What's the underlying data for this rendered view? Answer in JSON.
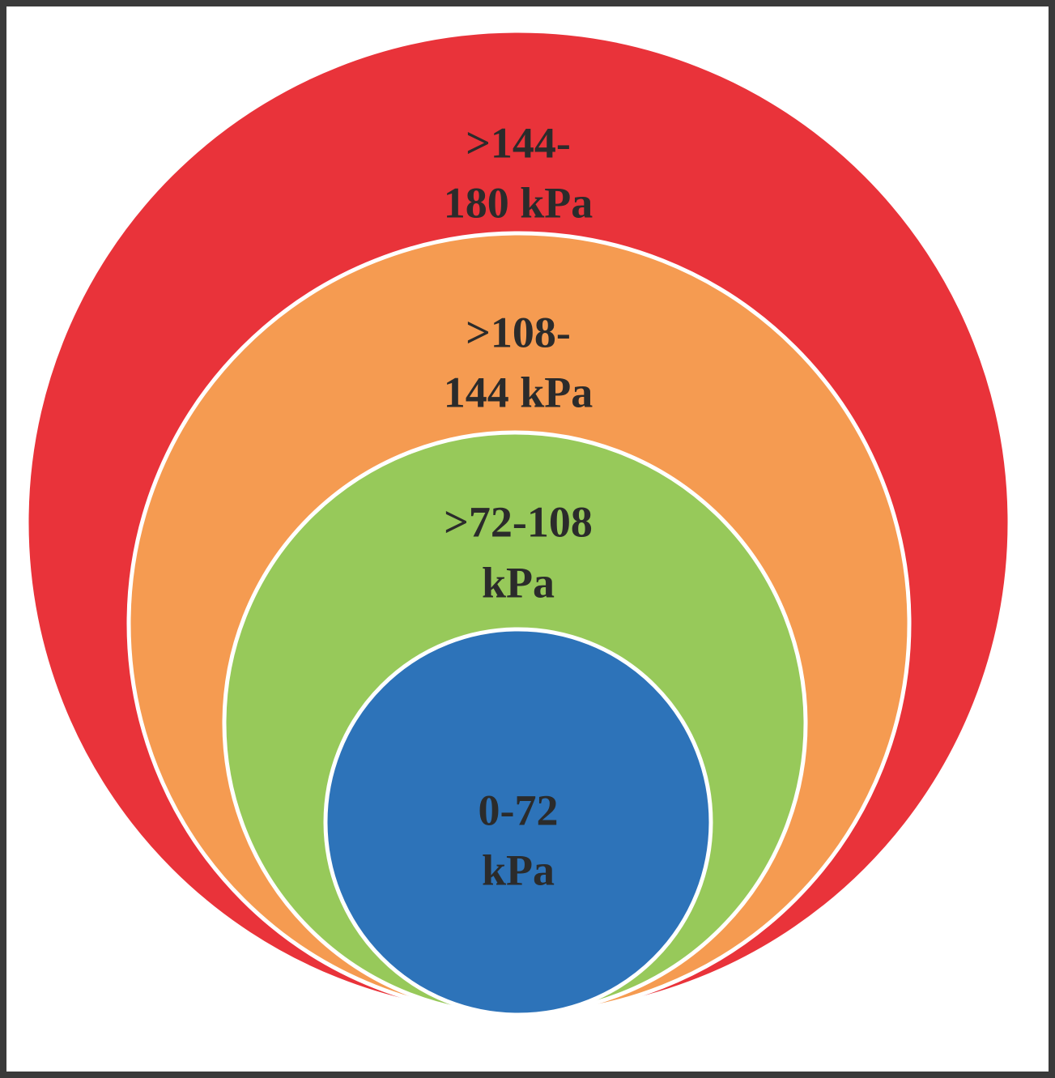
{
  "rings": [
    {
      "label_lines": [
        ">144-",
        "180 kPa"
      ]
    },
    {
      "label_lines": [
        ">108-",
        "144 kPa"
      ]
    },
    {
      "label_lines": [
        ">72-108",
        "kPa"
      ]
    },
    {
      "label_lines": [
        "0-72",
        "kPa"
      ]
    }
  ]
}
